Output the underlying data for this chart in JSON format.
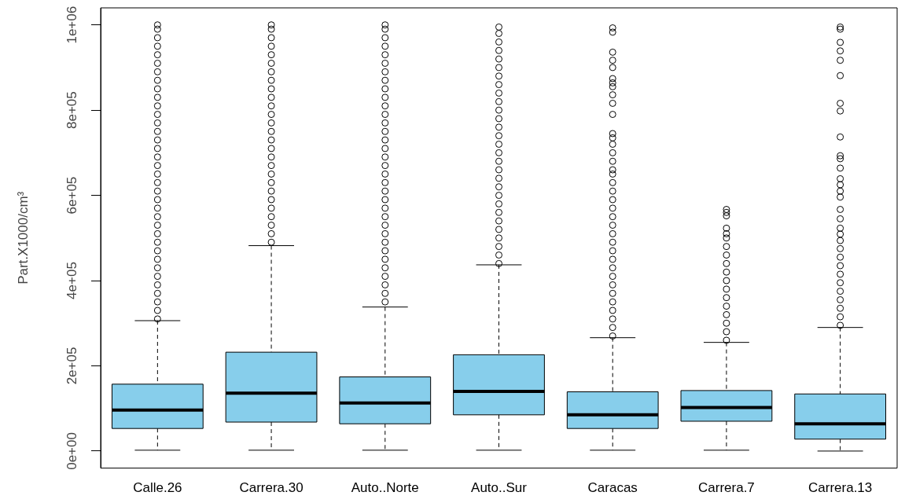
{
  "chart_data": {
    "type": "box",
    "ylabel": "Part.X1000/cm³",
    "color": "#87ceeb",
    "marker": "circle",
    "categories": [
      "Calle.26",
      "Carrera.30",
      "Auto..Norte",
      "Auto..Sur",
      "Caracas",
      "Carrera.7",
      "Carrera.13"
    ],
    "ylim": [
      -40000,
      1040000
    ],
    "yticks": [
      {
        "value": 0,
        "label": "0e+00"
      },
      {
        "value": 200000,
        "label": "2e+05"
      },
      {
        "value": 400000,
        "label": "4e+05"
      },
      {
        "value": 600000,
        "label": "6e+05"
      },
      {
        "value": 800000,
        "label": "8e+05"
      },
      {
        "value": 1000000,
        "label": "1e+06"
      }
    ],
    "boxes": [
      {
        "low": 2000,
        "q1": 53000,
        "median": 96000,
        "q3": 157000,
        "high": 306000,
        "outliers": [
          310000,
          330000,
          350000,
          370000,
          390000,
          410000,
          430000,
          450000,
          470000,
          490000,
          510000,
          530000,
          550000,
          570000,
          590000,
          610000,
          630000,
          650000,
          670000,
          690000,
          710000,
          730000,
          750000,
          770000,
          790000,
          810000,
          830000,
          850000,
          870000,
          890000,
          910000,
          930000,
          950000,
          970000,
          990000,
          1000000
        ]
      },
      {
        "low": 2000,
        "q1": 68000,
        "median": 136000,
        "q3": 232000,
        "high": 482000,
        "outliers": [
          490000,
          510000,
          530000,
          550000,
          570000,
          590000,
          610000,
          630000,
          650000,
          670000,
          690000,
          710000,
          730000,
          750000,
          770000,
          790000,
          810000,
          830000,
          850000,
          870000,
          890000,
          910000,
          930000,
          950000,
          970000,
          990000,
          1000000
        ]
      },
      {
        "low": 2000,
        "q1": 64000,
        "median": 113000,
        "q3": 174000,
        "high": 338000,
        "outliers": [
          350000,
          370000,
          390000,
          410000,
          430000,
          450000,
          470000,
          490000,
          510000,
          530000,
          550000,
          570000,
          590000,
          610000,
          630000,
          650000,
          670000,
          690000,
          710000,
          730000,
          750000,
          770000,
          790000,
          810000,
          830000,
          850000,
          870000,
          890000,
          910000,
          930000,
          950000,
          970000,
          990000,
          1000000
        ]
      },
      {
        "low": 2000,
        "q1": 85000,
        "median": 140000,
        "q3": 226000,
        "high": 437000,
        "outliers": [
          440000,
          460000,
          480000,
          500000,
          520000,
          540000,
          560000,
          580000,
          600000,
          620000,
          640000,
          660000,
          680000,
          700000,
          720000,
          740000,
          760000,
          780000,
          800000,
          820000,
          840000,
          860000,
          880000,
          900000,
          920000,
          940000,
          960000,
          980000,
          995000
        ]
      },
      {
        "low": 2000,
        "q1": 53000,
        "median": 85000,
        "q3": 139000,
        "high": 266000,
        "outliers": [
          270000,
          290000,
          310000,
          330000,
          350000,
          370000,
          390000,
          410000,
          430000,
          450000,
          470000,
          490000,
          510000,
          530000,
          550000,
          570000,
          590000,
          610000,
          630000,
          650000,
          660000,
          680000,
          700000,
          720000,
          735000,
          745000,
          790000,
          816000,
          836000,
          855000,
          864000,
          874000,
          900000,
          917000,
          936000,
          983000,
          993000
        ]
      },
      {
        "low": 2000,
        "q1": 70000,
        "median": 102000,
        "q3": 142000,
        "high": 255000,
        "outliers": [
          260000,
          280000,
          300000,
          320000,
          340000,
          360000,
          380000,
          400000,
          420000,
          440000,
          460000,
          480000,
          500000,
          510000,
          523000,
          552000,
          560000,
          567000
        ]
      },
      {
        "low": 0,
        "q1": 28000,
        "median": 64000,
        "q3": 134000,
        "high": 290000,
        "outliers": [
          295000,
          315000,
          335000,
          355000,
          375000,
          395000,
          415000,
          435000,
          455000,
          475000,
          494000,
          509000,
          523000,
          545000,
          567000,
          596000,
          610000,
          625000,
          639000,
          664000,
          686000,
          693000,
          737000,
          798000,
          816000,
          881000,
          917000,
          939000,
          959000,
          990000,
          995000
        ]
      }
    ]
  }
}
